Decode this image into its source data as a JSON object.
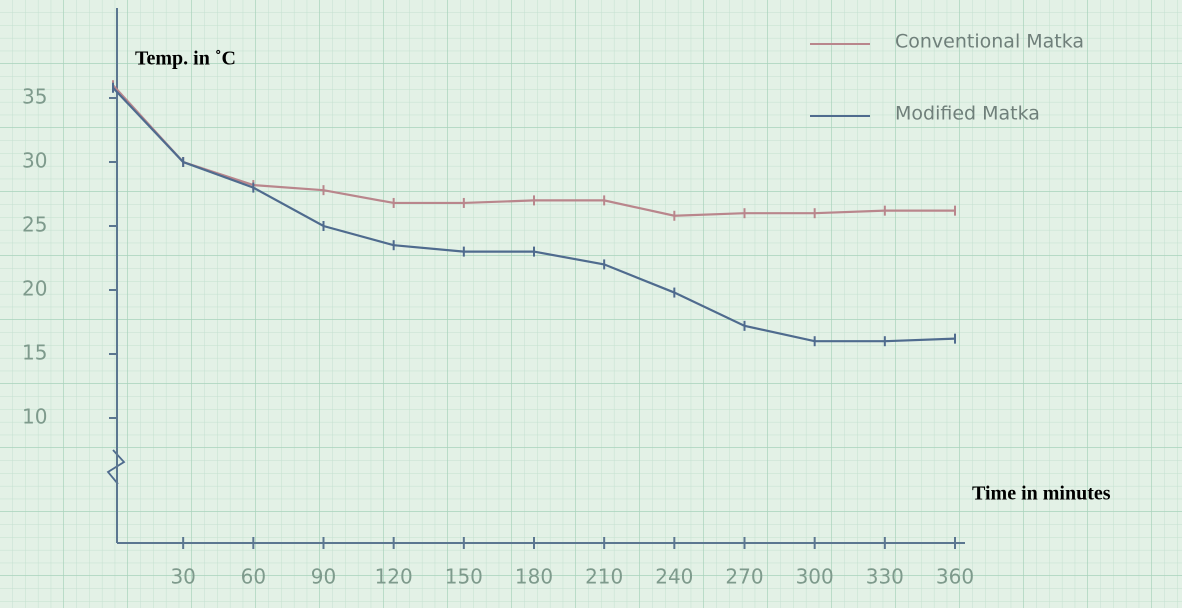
{
  "chart_data": {
    "type": "line",
    "y_label": "Temp. in ˚C",
    "x_label": "Time in minutes",
    "x": [
      0,
      30,
      60,
      90,
      120,
      150,
      180,
      210,
      240,
      270,
      300,
      330,
      360
    ],
    "series": [
      {
        "name": "Conventional Matka",
        "color": "#b9868c",
        "values": [
          36,
          30,
          28.2,
          27.8,
          26.8,
          26.8,
          27,
          27,
          25.8,
          26,
          26,
          26.2,
          26.2
        ]
      },
      {
        "name": "Modified Matka",
        "color": "#4f6b8e",
        "values": [
          35.8,
          30,
          28,
          25,
          23.5,
          23,
          23,
          22,
          19.8,
          17.2,
          16,
          16,
          16.2
        ]
      }
    ],
    "xlim": [
      0,
      360
    ],
    "xticks": [
      30,
      60,
      90,
      120,
      150,
      180,
      210,
      240,
      270,
      300,
      330,
      360
    ],
    "ylim": [
      0,
      42
    ],
    "yticks": [
      10,
      15,
      20,
      25,
      30,
      35
    ],
    "legend": "upper right"
  }
}
